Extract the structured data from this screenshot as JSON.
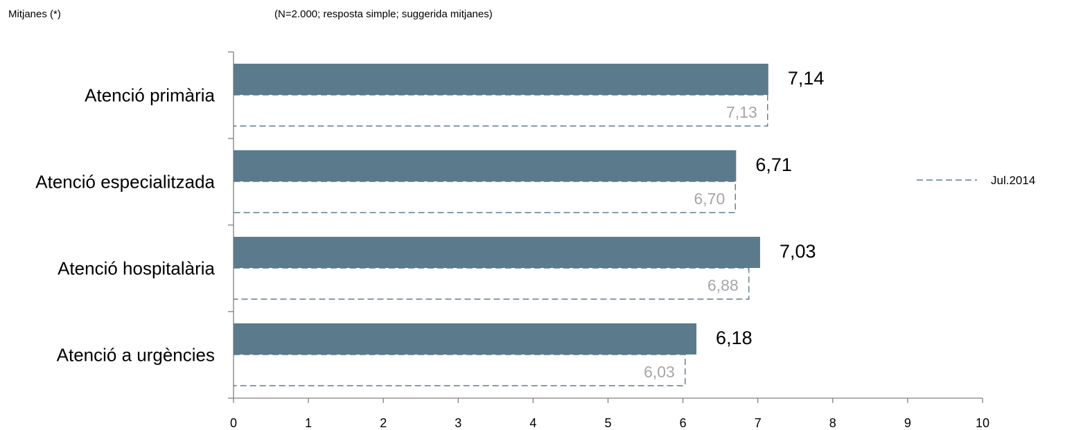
{
  "notes": {
    "left": "Mitjanes (*)",
    "right": "(N=2.000; resposta simple; suggerida mitjanes)"
  },
  "colors": {
    "current_bar": "#5b7b8c",
    "previous_outline": "#5b7b8c",
    "previous_label": "#a6a6a6",
    "axis": "#808080"
  },
  "chart_data": {
    "type": "bar",
    "orientation": "horizontal",
    "categories": [
      "Atenció primària",
      "Atenció especialitzada",
      "Atenció hospitalària",
      "Atenció a urgències"
    ],
    "series": [
      {
        "name": "",
        "style": "solid",
        "values": [
          7.14,
          6.71,
          7.03,
          6.18
        ],
        "labels": [
          "7,14",
          "6,71",
          "7,03",
          "6,18"
        ]
      },
      {
        "name": "Jul.2014",
        "style": "dashed-outline",
        "values": [
          7.13,
          6.7,
          6.88,
          6.03
        ],
        "labels": [
          "7,13",
          "6,70",
          "6,88",
          "6,03"
        ]
      }
    ],
    "xlim": [
      0,
      10
    ],
    "xticks": [
      "0",
      "1",
      "2",
      "3",
      "4",
      "5",
      "6",
      "7",
      "8",
      "9",
      "10"
    ],
    "grid": false,
    "legend": {
      "placement": "right",
      "entries": [
        "Jul.2014"
      ]
    }
  }
}
